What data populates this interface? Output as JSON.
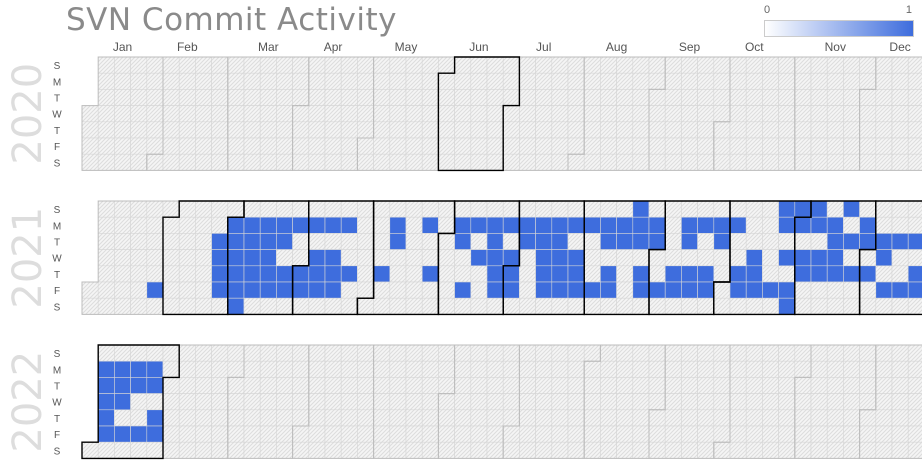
{
  "title": "SVN Commit Activity",
  "colors": {
    "scale_min": "#ffffff",
    "scale_max": "#3e6ddd",
    "cell_border": "#d6d6d6",
    "month_border_active": "#000000",
    "month_border_inactive": "#bdbdbd"
  },
  "chart_data": {
    "type": "heatmap",
    "title": "SVN Commit Activity",
    "color_scale": {
      "min": 0,
      "max": 1
    },
    "months": [
      "Jan",
      "Feb",
      "Mar",
      "Apr",
      "May",
      "Jun",
      "Jul",
      "Aug",
      "Sep",
      "Oct",
      "Nov",
      "Dec"
    ],
    "weekdays": [
      "S",
      "M",
      "T",
      "W",
      "T",
      "F",
      "S"
    ],
    "years": [
      {
        "year": 2020,
        "active_months": [
          6
        ],
        "active_days": []
      },
      {
        "year": 2021,
        "active_months": [
          2,
          3,
          4,
          5,
          6,
          7,
          8,
          9,
          10,
          11,
          12
        ],
        "active_days": [
          "2021-01-29",
          "2021-02-23",
          "2021-02-24",
          "2021-02-25",
          "2021-02-26",
          "2021-03-01",
          "2021-03-02",
          "2021-03-03",
          "2021-03-04",
          "2021-03-05",
          "2021-03-06",
          "2021-03-08",
          "2021-03-09",
          "2021-03-10",
          "2021-03-11",
          "2021-03-12",
          "2021-03-15",
          "2021-03-16",
          "2021-03-17",
          "2021-03-18",
          "2021-03-19",
          "2021-03-22",
          "2021-03-23",
          "2021-03-25",
          "2021-03-26",
          "2021-03-29",
          "2021-04-01",
          "2021-04-02",
          "2021-04-05",
          "2021-04-07",
          "2021-04-08",
          "2021-04-09",
          "2021-04-12",
          "2021-04-14",
          "2021-04-15",
          "2021-04-16",
          "2021-04-19",
          "2021-04-22",
          "2021-05-06",
          "2021-05-10",
          "2021-05-11",
          "2021-05-24",
          "2021-05-27",
          "2021-06-07",
          "2021-06-08",
          "2021-06-11",
          "2021-06-14",
          "2021-06-16",
          "2021-06-21",
          "2021-06-22",
          "2021-06-23",
          "2021-06-24",
          "2021-06-25",
          "2021-06-28",
          "2021-06-30",
          "2021-07-01",
          "2021-07-02",
          "2021-07-05",
          "2021-07-06",
          "2021-07-12",
          "2021-07-13",
          "2021-07-14",
          "2021-07-15",
          "2021-07-16",
          "2021-07-19",
          "2021-07-20",
          "2021-07-21",
          "2021-07-22",
          "2021-07-23",
          "2021-07-26",
          "2021-07-28",
          "2021-07-29",
          "2021-07-30",
          "2021-08-02",
          "2021-08-06",
          "2021-08-09",
          "2021-08-10",
          "2021-08-12",
          "2021-08-13",
          "2021-08-16",
          "2021-08-17",
          "2021-08-22",
          "2021-08-23",
          "2021-08-24",
          "2021-08-26",
          "2021-08-27",
          "2021-08-30",
          "2021-08-31",
          "2021-09-03",
          "2021-09-09",
          "2021-09-10",
          "2021-09-13",
          "2021-09-14",
          "2021-09-16",
          "2021-09-17",
          "2021-09-20",
          "2021-09-23",
          "2021-09-24",
          "2021-09-27",
          "2021-09-28",
          "2021-10-04",
          "2021-10-07",
          "2021-10-08",
          "2021-10-13",
          "2021-10-14",
          "2021-10-15",
          "2021-10-22",
          "2021-10-24",
          "2021-10-25",
          "2021-10-27",
          "2021-10-29",
          "2021-10-30",
          "2021-10-31",
          "2021-11-01",
          "2021-11-03",
          "2021-11-04",
          "2021-11-07",
          "2021-11-08",
          "2021-11-10",
          "2021-11-11",
          "2021-11-15",
          "2021-11-16",
          "2021-11-17",
          "2021-11-18",
          "2021-11-21",
          "2021-11-23",
          "2021-11-25",
          "2021-11-29",
          "2021-11-30",
          "2021-12-02",
          "2021-12-07",
          "2021-12-08",
          "2021-12-10",
          "2021-12-14",
          "2021-12-17",
          "2021-12-21",
          "2021-12-23",
          "2021-12-24"
        ]
      },
      {
        "year": 2022,
        "active_months": [
          1
        ],
        "active_days": [
          "2022-01-03",
          "2022-01-04",
          "2022-01-05",
          "2022-01-06",
          "2022-01-07",
          "2022-01-10",
          "2022-01-11",
          "2022-01-12",
          "2022-01-14",
          "2022-01-17",
          "2022-01-18",
          "2022-01-21",
          "2022-01-24",
          "2022-01-25",
          "2022-01-27",
          "2022-01-28"
        ]
      }
    ]
  }
}
